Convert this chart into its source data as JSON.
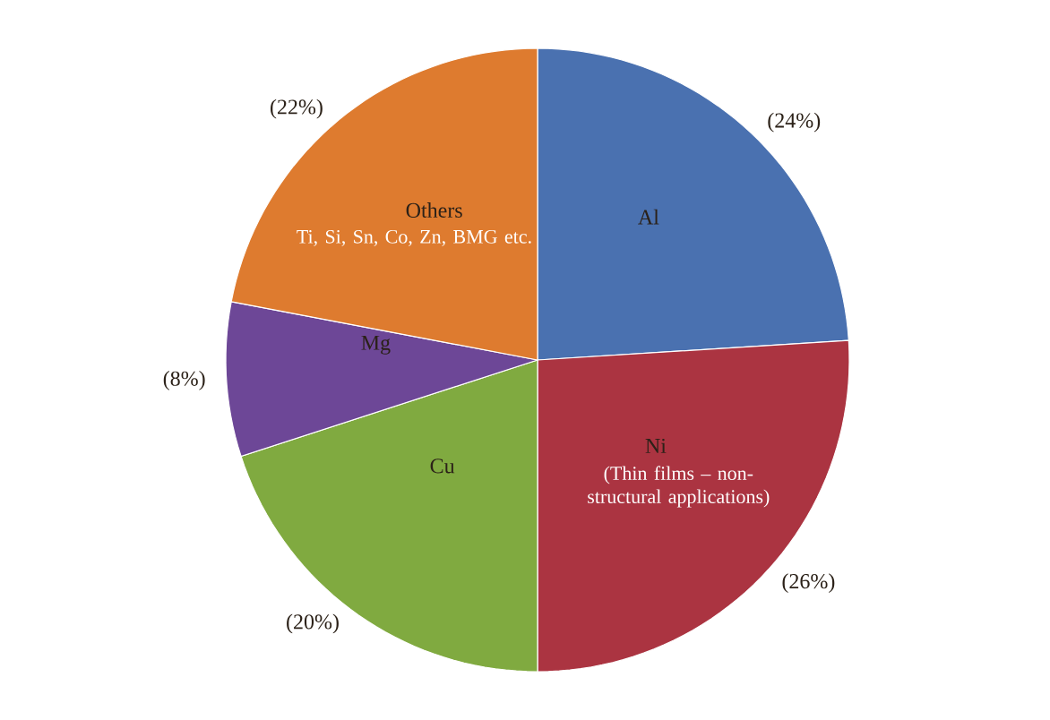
{
  "chart_data": {
    "type": "pie",
    "categories": [
      "Al",
      "Ni",
      "Cu",
      "Mg",
      "Others"
    ],
    "values": [
      24,
      26,
      20,
      8,
      22
    ],
    "colors": [
      "#4a71b0",
      "#ab3441",
      "#80aa40",
      "#6d4797",
      "#de7b2f"
    ],
    "value_labels": [
      "(24%)",
      "(26%)",
      "(20%)",
      "(8%)",
      "(22%)"
    ],
    "annotations": [
      {
        "text": "Ti, Si, Sn, Co, Zn, BMG etc.",
        "x": "Others"
      },
      {
        "text": "(Thin films – non-structural applications)",
        "x": "Ni"
      }
    ]
  }
}
